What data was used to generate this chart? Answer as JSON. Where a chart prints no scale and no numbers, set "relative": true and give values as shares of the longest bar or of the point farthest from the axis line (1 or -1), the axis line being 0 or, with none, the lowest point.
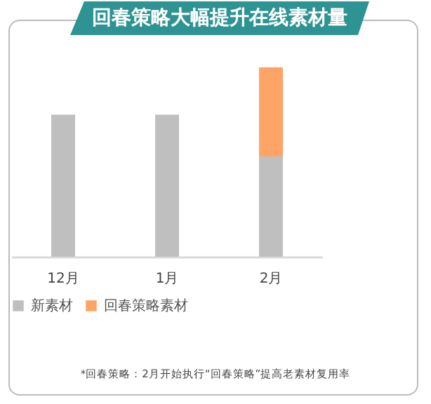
{
  "chart_data": {
    "type": "bar",
    "title": "回春策略大幅提升在线素材量",
    "categories": [
      "12月",
      "1月",
      "2月"
    ],
    "stacked": true,
    "relative": true,
    "legend": "bottom",
    "grid": false,
    "series": [
      {
        "name": "新素材",
        "color": "#bfbfbf",
        "values": [
          0.75,
          0.75,
          0.53
        ]
      },
      {
        "name": "回春策略素材",
        "color": "#fda466",
        "values": [
          0,
          0,
          0.47
        ]
      }
    ],
    "annotations": [
      "*回春策略：2月开始执行“回春策略”提高老素材复用率"
    ]
  }
}
